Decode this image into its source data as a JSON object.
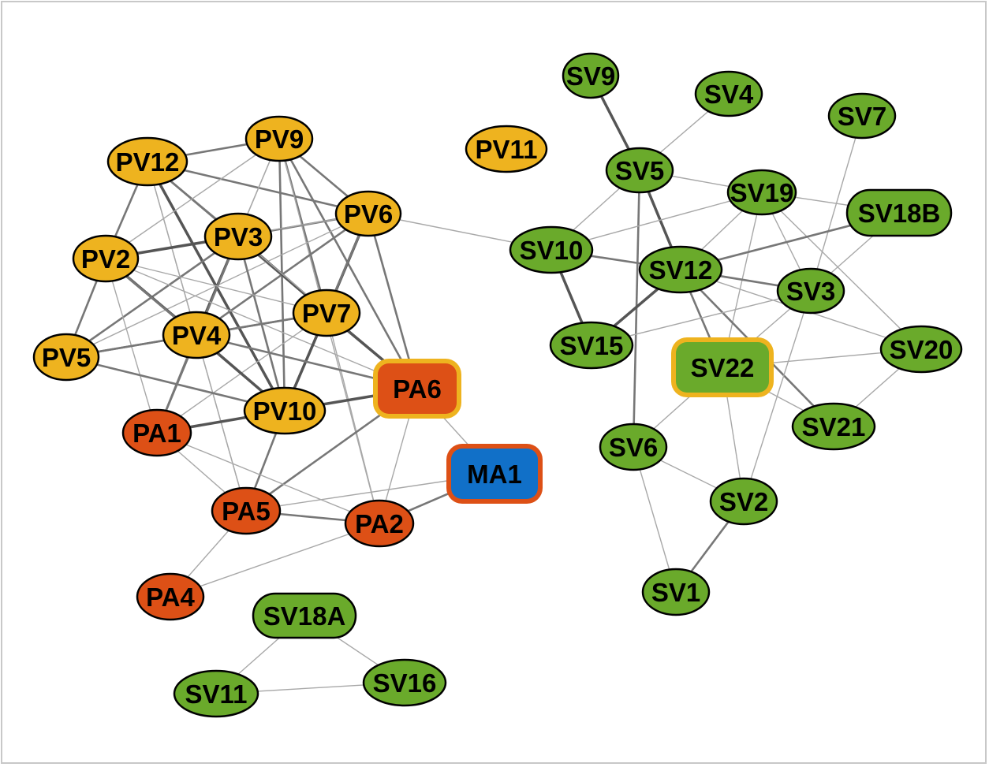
{
  "colors": {
    "pv": "#eeb31f",
    "pa": "#dd5016",
    "sv": "#6aaa2b",
    "ma": "#1170c8",
    "node_stroke": "#000000",
    "edge_dark": "#555555",
    "edge_mid": "#777777",
    "edge_light": "#a8a8a8",
    "highlight_orange": "#eeb31f",
    "highlight_red": "#dd5016"
  },
  "nodes": [
    {
      "id": "PV12",
      "label": "PV12",
      "group": "pv",
      "shape": "ellipse"
    },
    {
      "id": "PV9",
      "label": "PV9",
      "group": "pv",
      "shape": "ellipse"
    },
    {
      "id": "PV11",
      "label": "PV11",
      "group": "pv",
      "shape": "ellipse"
    },
    {
      "id": "PV6",
      "label": "PV6",
      "group": "pv",
      "shape": "ellipse"
    },
    {
      "id": "PV3",
      "label": "PV3",
      "group": "pv",
      "shape": "ellipse"
    },
    {
      "id": "PV2",
      "label": "PV2",
      "group": "pv",
      "shape": "ellipse"
    },
    {
      "id": "PV7",
      "label": "PV7",
      "group": "pv",
      "shape": "ellipse"
    },
    {
      "id": "PV4",
      "label": "PV4",
      "group": "pv",
      "shape": "ellipse"
    },
    {
      "id": "PV5",
      "label": "PV5",
      "group": "pv",
      "shape": "ellipse"
    },
    {
      "id": "PV10",
      "label": "PV10",
      "group": "pv",
      "shape": "ellipse"
    },
    {
      "id": "PA6",
      "label": "PA6",
      "group": "pa",
      "shape": "rounded",
      "ring": "highlight_orange"
    },
    {
      "id": "PA1",
      "label": "PA1",
      "group": "pa",
      "shape": "ellipse"
    },
    {
      "id": "MA1",
      "label": "MA1",
      "group": "ma",
      "shape": "rounded",
      "ring": "highlight_red"
    },
    {
      "id": "PA5",
      "label": "PA5",
      "group": "pa",
      "shape": "ellipse"
    },
    {
      "id": "PA2",
      "label": "PA2",
      "group": "pa",
      "shape": "ellipse"
    },
    {
      "id": "PA4",
      "label": "PA4",
      "group": "pa",
      "shape": "ellipse"
    },
    {
      "id": "SV18A",
      "label": "SV18A",
      "group": "sv",
      "shape": "rounded"
    },
    {
      "id": "SV11",
      "label": "SV11",
      "group": "sv",
      "shape": "ellipse"
    },
    {
      "id": "SV16",
      "label": "SV16",
      "group": "sv",
      "shape": "ellipse"
    },
    {
      "id": "SV9",
      "label": "SV9",
      "group": "sv",
      "shape": "ellipse"
    },
    {
      "id": "SV4",
      "label": "SV4",
      "group": "sv",
      "shape": "ellipse"
    },
    {
      "id": "SV7",
      "label": "SV7",
      "group": "sv",
      "shape": "ellipse"
    },
    {
      "id": "SV5",
      "label": "SV5",
      "group": "sv",
      "shape": "ellipse"
    },
    {
      "id": "SV19",
      "label": "SV19",
      "group": "sv",
      "shape": "ellipse"
    },
    {
      "id": "SV18B",
      "label": "SV18B",
      "group": "sv",
      "shape": "rounded"
    },
    {
      "id": "SV10",
      "label": "SV10",
      "group": "sv",
      "shape": "ellipse"
    },
    {
      "id": "SV12",
      "label": "SV12",
      "group": "sv",
      "shape": "ellipse"
    },
    {
      "id": "SV3",
      "label": "SV3",
      "group": "sv",
      "shape": "ellipse"
    },
    {
      "id": "SV15",
      "label": "SV15",
      "group": "sv",
      "shape": "ellipse"
    },
    {
      "id": "SV22",
      "label": "SV22",
      "group": "sv",
      "shape": "rounded",
      "ring": "highlight_orange"
    },
    {
      "id": "SV20",
      "label": "SV20",
      "group": "sv",
      "shape": "ellipse"
    },
    {
      "id": "SV21",
      "label": "SV21",
      "group": "sv",
      "shape": "ellipse"
    },
    {
      "id": "SV6",
      "label": "SV6",
      "group": "sv",
      "shape": "ellipse"
    },
    {
      "id": "SV2",
      "label": "SV2",
      "group": "sv",
      "shape": "ellipse"
    },
    {
      "id": "SV1",
      "label": "SV1",
      "group": "sv",
      "shape": "ellipse"
    }
  ],
  "edges": [
    {
      "from": "PV12",
      "to": "PV9",
      "weight": "mid"
    },
    {
      "from": "PV12",
      "to": "PV6",
      "weight": "mid"
    },
    {
      "from": "PV12",
      "to": "PV2",
      "weight": "mid"
    },
    {
      "from": "PV12",
      "to": "PV3",
      "weight": "light"
    },
    {
      "from": "PV12",
      "to": "PV7",
      "weight": "mid"
    },
    {
      "from": "PV12",
      "to": "PV10",
      "weight": "dark"
    },
    {
      "from": "PV12",
      "to": "PV4",
      "weight": "light"
    },
    {
      "from": "PV12",
      "to": "PA6",
      "weight": "mid"
    },
    {
      "from": "PV12",
      "to": "PA5",
      "weight": "light"
    },
    {
      "from": "PV9",
      "to": "PV2",
      "weight": "light"
    },
    {
      "from": "PV9",
      "to": "PV3",
      "weight": "light"
    },
    {
      "from": "PV9",
      "to": "PV6",
      "weight": "mid"
    },
    {
      "from": "PV9",
      "to": "PV7",
      "weight": "mid"
    },
    {
      "from": "PV9",
      "to": "PV10",
      "weight": "mid"
    },
    {
      "from": "PV9",
      "to": "PV4",
      "weight": "light"
    },
    {
      "from": "PV9",
      "to": "PA6",
      "weight": "mid"
    },
    {
      "from": "PV9",
      "to": "PA2",
      "weight": "light"
    },
    {
      "from": "PV6",
      "to": "PV3",
      "weight": "mid"
    },
    {
      "from": "PV6",
      "to": "PV2",
      "weight": "light"
    },
    {
      "from": "PV6",
      "to": "PV7",
      "weight": "dark"
    },
    {
      "from": "PV6",
      "to": "PV4",
      "weight": "mid"
    },
    {
      "from": "PV6",
      "to": "PV5",
      "weight": "light"
    },
    {
      "from": "PV6",
      "to": "PV10",
      "weight": "mid"
    },
    {
      "from": "PV6",
      "to": "PA6",
      "weight": "mid"
    },
    {
      "from": "PV6",
      "to": "SV10",
      "weight": "light"
    },
    {
      "from": "PV3",
      "to": "PV2",
      "weight": "dark"
    },
    {
      "from": "PV3",
      "to": "PV4",
      "weight": "dark"
    },
    {
      "from": "PV3",
      "to": "PV5",
      "weight": "mid"
    },
    {
      "from": "PV3",
      "to": "PV7",
      "weight": "dark"
    },
    {
      "from": "PV3",
      "to": "PV10",
      "weight": "mid"
    },
    {
      "from": "PV3",
      "to": "PA1",
      "weight": "mid"
    },
    {
      "from": "PV3",
      "to": "PA6",
      "weight": "light"
    },
    {
      "from": "PV2",
      "to": "PV4",
      "weight": "dark"
    },
    {
      "from": "PV2",
      "to": "PV5",
      "weight": "mid"
    },
    {
      "from": "PV2",
      "to": "PV7",
      "weight": "light"
    },
    {
      "from": "PV2",
      "to": "PV10",
      "weight": "mid"
    },
    {
      "from": "PV2",
      "to": "PA6",
      "weight": "light"
    },
    {
      "from": "PV2",
      "to": "PA1",
      "weight": "light"
    },
    {
      "from": "PV7",
      "to": "PV4",
      "weight": "mid"
    },
    {
      "from": "PV7",
      "to": "PV5",
      "weight": "mid"
    },
    {
      "from": "PV7",
      "to": "PV10",
      "weight": "dark"
    },
    {
      "from": "PV7",
      "to": "PA6",
      "weight": "dark"
    },
    {
      "from": "PV7",
      "to": "PA1",
      "weight": "light"
    },
    {
      "from": "PV7",
      "to": "PA2",
      "weight": "light"
    },
    {
      "from": "PV4",
      "to": "PV5",
      "weight": "mid"
    },
    {
      "from": "PV4",
      "to": "PV10",
      "weight": "dark"
    },
    {
      "from": "PV4",
      "to": "PA1",
      "weight": "mid"
    },
    {
      "from": "PV4",
      "to": "PA6",
      "weight": "mid"
    },
    {
      "from": "PV4",
      "to": "PA5",
      "weight": "light"
    },
    {
      "from": "PV5",
      "to": "PV10",
      "weight": "mid"
    },
    {
      "from": "PV10",
      "to": "PA1",
      "weight": "dark"
    },
    {
      "from": "PV10",
      "to": "PA6",
      "weight": "dark"
    },
    {
      "from": "PV10",
      "to": "PA5",
      "weight": "mid"
    },
    {
      "from": "PA6",
      "to": "MA1",
      "weight": "light"
    },
    {
      "from": "PA6",
      "to": "PA5",
      "weight": "mid"
    },
    {
      "from": "PA6",
      "to": "PA2",
      "weight": "light"
    },
    {
      "from": "PA1",
      "to": "PA5",
      "weight": "light"
    },
    {
      "from": "PA1",
      "to": "PA2",
      "weight": "light"
    },
    {
      "from": "PA5",
      "to": "PA2",
      "weight": "mid"
    },
    {
      "from": "PA5",
      "to": "MA1",
      "weight": "light"
    },
    {
      "from": "PA5",
      "to": "PA4",
      "weight": "light"
    },
    {
      "from": "PA2",
      "to": "MA1",
      "weight": "mid"
    },
    {
      "from": "PA2",
      "to": "PA4",
      "weight": "light"
    },
    {
      "from": "SV18A",
      "to": "SV11",
      "weight": "light"
    },
    {
      "from": "SV18A",
      "to": "SV16",
      "weight": "light"
    },
    {
      "from": "SV11",
      "to": "SV16",
      "weight": "light"
    },
    {
      "from": "SV9",
      "to": "SV5",
      "weight": "dark"
    },
    {
      "from": "SV4",
      "to": "SV5",
      "weight": "light"
    },
    {
      "from": "SV5",
      "to": "SV19",
      "weight": "light"
    },
    {
      "from": "SV5",
      "to": "SV10",
      "weight": "light"
    },
    {
      "from": "SV5",
      "to": "SV12",
      "weight": "dark"
    },
    {
      "from": "SV5",
      "to": "SV6",
      "weight": "mid"
    },
    {
      "from": "SV19",
      "to": "SV10",
      "weight": "light"
    },
    {
      "from": "SV19",
      "to": "SV12",
      "weight": "light"
    },
    {
      "from": "SV19",
      "to": "SV18B",
      "weight": "light"
    },
    {
      "from": "SV19",
      "to": "SV3",
      "weight": "light"
    },
    {
      "from": "SV19",
      "to": "SV22",
      "weight": "light"
    },
    {
      "from": "SV19",
      "to": "SV20",
      "weight": "light"
    },
    {
      "from": "SV7",
      "to": "SV3",
      "weight": "light"
    },
    {
      "from": "SV10",
      "to": "SV12",
      "weight": "mid"
    },
    {
      "from": "SV10",
      "to": "SV15",
      "weight": "dark"
    },
    {
      "from": "SV12",
      "to": "SV18B",
      "weight": "mid"
    },
    {
      "from": "SV12",
      "to": "SV3",
      "weight": "mid"
    },
    {
      "from": "SV12",
      "to": "SV15",
      "weight": "dark"
    },
    {
      "from": "SV12",
      "to": "SV22",
      "weight": "mid"
    },
    {
      "from": "SV12",
      "to": "SV21",
      "weight": "mid"
    },
    {
      "from": "SV12",
      "to": "SV20",
      "weight": "light"
    },
    {
      "from": "SV18B",
      "to": "SV3",
      "weight": "light"
    },
    {
      "from": "SV3",
      "to": "SV15",
      "weight": "light"
    },
    {
      "from": "SV3",
      "to": "SV22",
      "weight": "light"
    },
    {
      "from": "SV3",
      "to": "SV2",
      "weight": "light"
    },
    {
      "from": "SV22",
      "to": "SV20",
      "weight": "light"
    },
    {
      "from": "SV22",
      "to": "SV21",
      "weight": "light"
    },
    {
      "from": "SV22",
      "to": "SV6",
      "weight": "light"
    },
    {
      "from": "SV22",
      "to": "SV2",
      "weight": "light"
    },
    {
      "from": "SV20",
      "to": "SV21",
      "weight": "light"
    },
    {
      "from": "SV6",
      "to": "SV2",
      "weight": "light"
    },
    {
      "from": "SV6",
      "to": "SV1",
      "weight": "light"
    },
    {
      "from": "SV2",
      "to": "SV1",
      "weight": "mid"
    }
  ]
}
